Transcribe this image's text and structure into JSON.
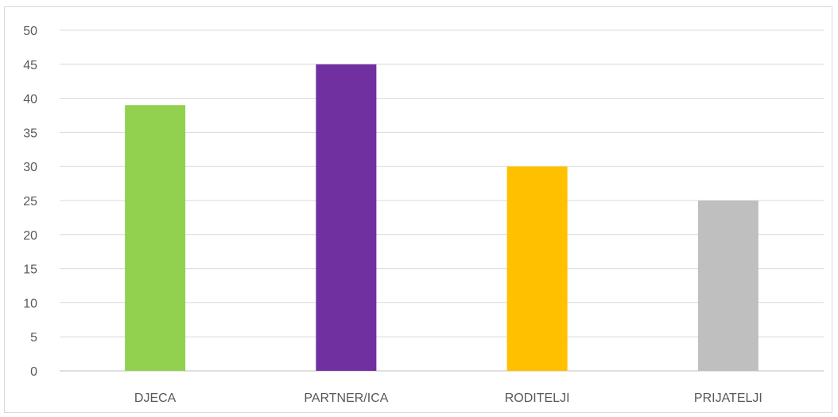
{
  "chart_data": {
    "type": "bar",
    "title": "",
    "xlabel": "",
    "ylabel": "",
    "categories": [
      "DJECA",
      "PARTNER/ICA",
      "RODITELJI",
      "PRIJATELJI"
    ],
    "values": [
      39,
      45,
      30,
      25
    ],
    "colors": [
      "#92d050",
      "#7030a0",
      "#ffc000",
      "#bfbfbf"
    ],
    "ylim": [
      0,
      50
    ],
    "yticks": [
      "0",
      "5",
      "10",
      "15",
      "20",
      "25",
      "30",
      "35",
      "40",
      "45",
      "50"
    ],
    "grid": true,
    "legend": "none"
  }
}
